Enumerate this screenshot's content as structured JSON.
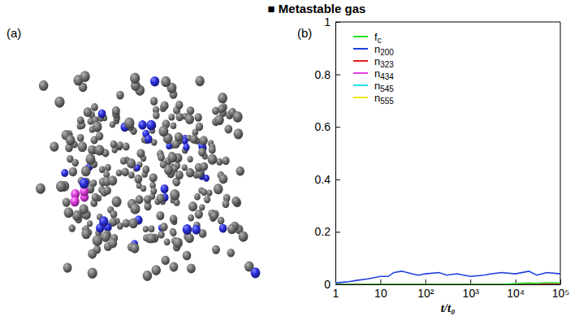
{
  "chart_data": {
    "type": "line",
    "title": "■ Metastable gas",
    "annotations": [
      "(a)",
      "(b)"
    ],
    "x_label": "t/t₀",
    "log": "x",
    "legend": "upper left",
    "xlim": [
      1,
      100000
    ],
    "ylim": [
      0,
      1
    ],
    "xticks": [
      1,
      10,
      {
        "value": 100,
        "label": "10²"
      },
      {
        "value": 1000,
        "label": "10³"
      },
      {
        "value": 10000,
        "label": "10⁴"
      },
      {
        "value": 100000,
        "label": "10⁵"
      }
    ],
    "yticks": [
      0,
      0.2,
      0.4,
      0.6,
      0.8,
      1
    ],
    "x": [
      1,
      1.5,
      2,
      3,
      5,
      7,
      10,
      15,
      20,
      30,
      50,
      70,
      100,
      200,
      300,
      500,
      1000,
      2000,
      3000,
      5000,
      10000,
      20000,
      30000,
      50000,
      100000
    ],
    "series": [
      {
        "name": "fc",
        "color": "#22dd22",
        "values": [
          0,
          0,
          0,
          0,
          0,
          0,
          0,
          0,
          0,
          0,
          0,
          0,
          0,
          0,
          0,
          0,
          0,
          0,
          0,
          0,
          0.003,
          0.005,
          0.004,
          0.006,
          0.005
        ]
      },
      {
        "name": "n200",
        "color": "#1f3fe0",
        "values": [
          0.005,
          0.008,
          0.01,
          0.015,
          0.02,
          0.025,
          0.03,
          0.03,
          0.045,
          0.05,
          0.04,
          0.035,
          0.04,
          0.045,
          0.035,
          0.04,
          0.03,
          0.035,
          0.04,
          0.045,
          0.04,
          0.05,
          0.035,
          0.045,
          0.04
        ]
      },
      {
        "name": "n323",
        "color": "#e81c1c",
        "values": [
          0,
          0,
          0,
          0,
          0,
          0,
          0,
          0,
          0,
          0,
          0,
          0,
          0,
          0,
          0,
          0,
          0,
          0,
          0,
          0,
          0,
          0,
          0,
          0,
          0
        ]
      },
      {
        "name": "n434",
        "color": "#e040e0",
        "values": [
          0,
          0,
          0,
          0,
          0,
          0,
          0,
          0,
          0,
          0,
          0,
          0,
          0,
          0,
          0,
          0,
          0,
          0,
          0,
          0,
          0,
          0,
          0,
          0,
          0
        ]
      },
      {
        "name": "n545",
        "color": "#22e0e8",
        "values": [
          0,
          0,
          0,
          0,
          0,
          0,
          0,
          0,
          0,
          0,
          0,
          0,
          0,
          0,
          0,
          0,
          0,
          0,
          0,
          0,
          0,
          0,
          0,
          0,
          0
        ]
      },
      {
        "name": "n555",
        "color": "#f0e81c",
        "values": [
          0,
          0,
          0,
          0,
          0,
          0,
          0,
          0,
          0,
          0,
          0,
          0,
          0,
          0,
          0,
          0,
          0,
          0,
          0,
          0,
          0,
          0,
          0,
          0,
          0
        ]
      }
    ]
  }
}
